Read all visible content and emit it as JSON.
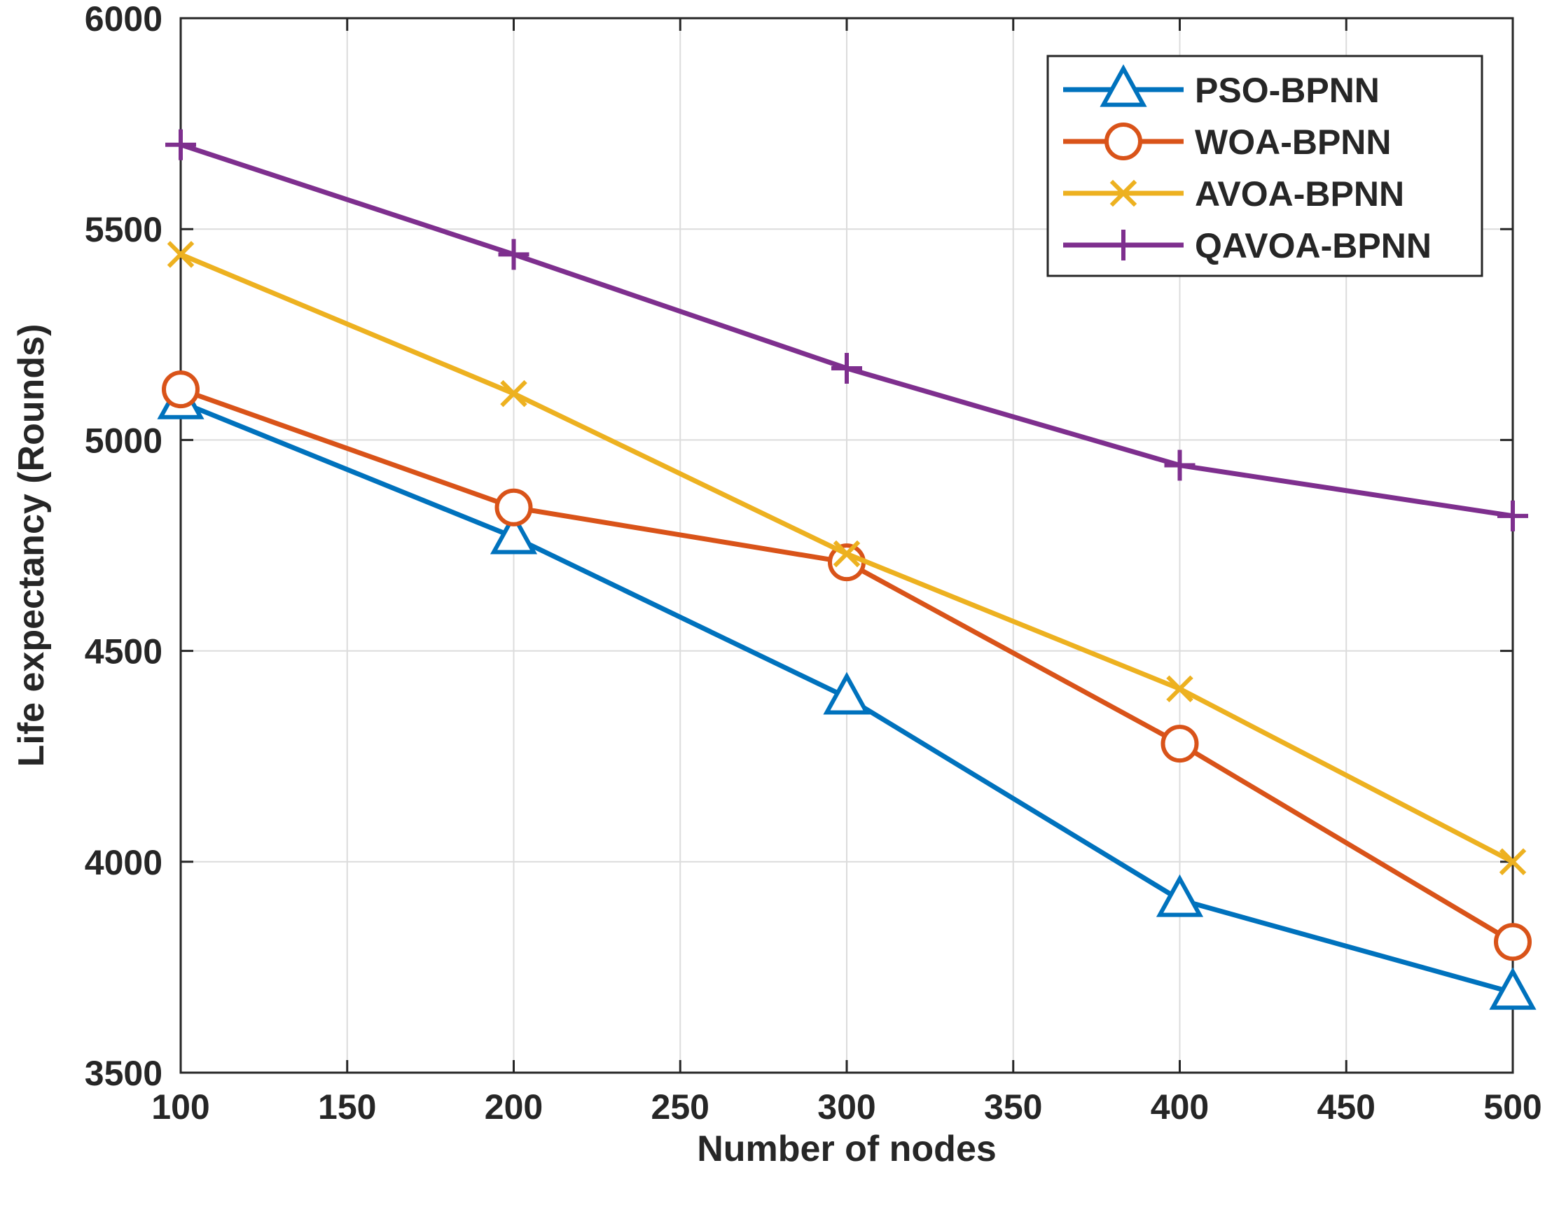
{
  "chart_data": {
    "type": "line",
    "title": "",
    "xlabel": "Number of nodes",
    "ylabel": "Life expectancy (Rounds)",
    "x": [
      100,
      200,
      300,
      400,
      500
    ],
    "xlim": [
      100,
      500
    ],
    "ylim": [
      3500,
      6000
    ],
    "xticks": [
      100,
      150,
      200,
      250,
      300,
      350,
      400,
      450,
      500
    ],
    "yticks": [
      3500,
      4000,
      4500,
      5000,
      5500,
      6000
    ],
    "xtick_labels": [
      "100",
      "150",
      "200",
      "250",
      "300",
      "350",
      "400",
      "450",
      "500"
    ],
    "ytick_labels": [
      "3500",
      "4000",
      "4500",
      "5000",
      "5500",
      "6000"
    ],
    "grid": true,
    "legend_position": "top-right",
    "series": [
      {
        "name": "PSO-BPNN",
        "values": [
          5090,
          4770,
          4390,
          3910,
          3690
        ],
        "color": "#0072BD",
        "marker": "triangle"
      },
      {
        "name": "WOA-BPNN",
        "values": [
          5120,
          4840,
          4710,
          4280,
          3810
        ],
        "color": "#D95319",
        "marker": "circle"
      },
      {
        "name": "AVOA-BPNN",
        "values": [
          5440,
          5110,
          4730,
          4410,
          4000
        ],
        "color": "#EDB120",
        "marker": "x"
      },
      {
        "name": "QAVOA-BPNN",
        "values": [
          5700,
          5440,
          5170,
          4940,
          4820
        ],
        "color": "#7E2F8E",
        "marker": "plus"
      }
    ]
  }
}
